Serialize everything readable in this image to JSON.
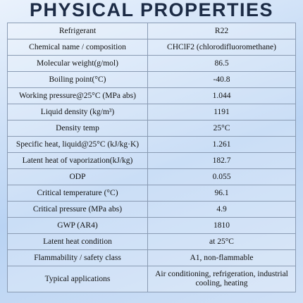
{
  "header": {
    "title": "PHYSICAL PROPERTIES"
  },
  "table": {
    "rows": [
      [
        "Refrigerant",
        "R22"
      ],
      [
        "Chemical name / composition",
        "CHClF2 (chlorodifluoromethane)"
      ],
      [
        "Molecular weight(g/mol)",
        "86.5"
      ],
      [
        "Boiling point(°C)",
        "-40.8"
      ],
      [
        "Working pressure@25°C (MPa abs)",
        "1.044"
      ],
      [
        "Liquid density (kg/m³)",
        "1191"
      ],
      [
        "Density temp",
        "25°C"
      ],
      [
        "Specific heat, liquid@25°C (kJ/kg·K)",
        "1.261"
      ],
      [
        "Latent heat of vaporization(kJ/kg)",
        "182.7"
      ],
      [
        "ODP",
        "0.055"
      ],
      [
        "Critical temperature (°C)",
        "96.1"
      ],
      [
        "Critical pressure (MPa abs)",
        "4.9"
      ],
      [
        "GWP (AR4)",
        "1810"
      ],
      [
        "Latent heat condition",
        "at 25°C"
      ],
      [
        "Flammability / safety class",
        "A1, non-flammable"
      ],
      [
        "Typical applications",
        "Air conditioning, refrigeration, industrial cooling, heating"
      ]
    ]
  }
}
